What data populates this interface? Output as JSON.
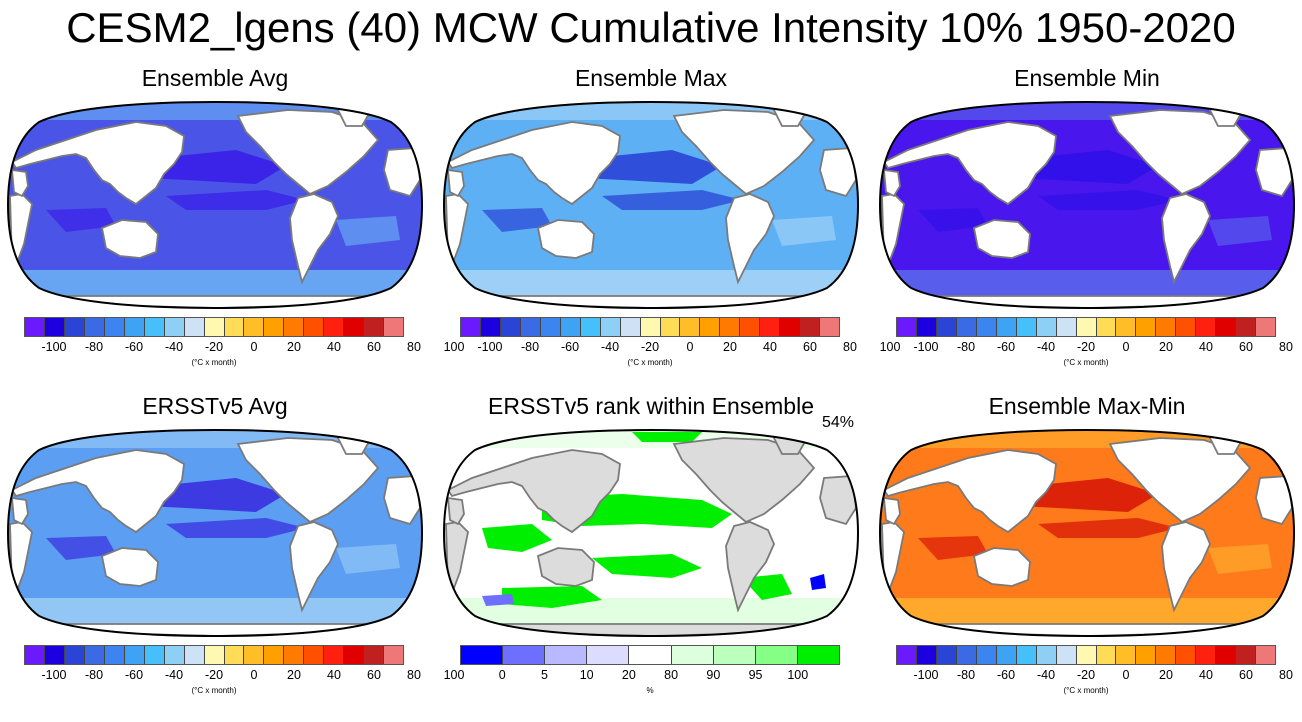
{
  "title": "CESM2_lgens (40) MCW Cumulative Intensity 10% 1950-2020",
  "anomaly_palette": [
    "#6b1aff",
    "#1c00e0",
    "#2a44d6",
    "#3a6be4",
    "#3c84f0",
    "#3ea3f5",
    "#46c0fa",
    "#8ecff5",
    "#cde3f5",
    "#fff8b0",
    "#ffdc55",
    "#ffbe28",
    "#ffa000",
    "#ff7a00",
    "#ff5000",
    "#ff2010",
    "#e00000",
    "#c02020",
    "#ee7878"
  ],
  "rank_palette": [
    "#0000ff",
    "#6f6fff",
    "#b9b9ff",
    "#dcdcff",
    "#ffffff",
    "#ddffdd",
    "#bdffbd",
    "#86ff86",
    "#00ee00"
  ],
  "anomaly_ticks": [
    "-100",
    "-80",
    "-60",
    "-40",
    "-20",
    "0",
    "20",
    "40",
    "60",
    "80",
    "100"
  ],
  "anomaly_units": "(°C x month)",
  "rank_ticks": [
    "0",
    "5",
    "10",
    "20",
    "80",
    "90",
    "95",
    "100"
  ],
  "rank_units": "%",
  "panels": [
    {
      "id": "ensemble-avg",
      "title": "Ensemble Avg",
      "colorbar": "anomaly",
      "ocean": "#4a55e8",
      "hot": "#3a1fe8",
      "light": "#6cb4f5"
    },
    {
      "id": "ensemble-max",
      "title": "Ensemble Max",
      "colorbar": "anomaly",
      "ocean": "#5eb0f5",
      "hot": "#2a44d6",
      "light": "#a9d6f7"
    },
    {
      "id": "ensemble-min",
      "title": "Ensemble Min",
      "colorbar": "anomaly",
      "ocean": "#4a16ee",
      "hot": "#3010e8",
      "light": "#5a6bea"
    },
    {
      "id": "ersst-avg",
      "title": "ERSSTv5 Avg",
      "colorbar": "anomaly",
      "ocean": "#5b9ef2",
      "hot": "#3a2fe0",
      "light": "#9ccdf6"
    },
    {
      "id": "ersst-rank",
      "title": "ERSSTv5 rank within Ensemble",
      "colorbar": "rank",
      "percent": "54%",
      "ocean": "#ffffff",
      "hot": "#00ee00",
      "light": "#ddffdd"
    },
    {
      "id": "max-min",
      "title": "Ensemble Max-Min",
      "colorbar": "anomaly",
      "ocean": "#ff7a1a",
      "hot": "#d81808",
      "light": "#ffb030"
    }
  ]
}
